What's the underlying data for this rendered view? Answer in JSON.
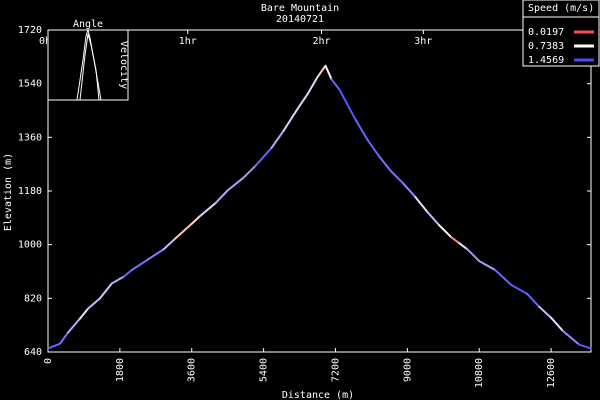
{
  "chart_data": {
    "type": "line",
    "title": "Bare Mountain",
    "subtitle": "20140721",
    "xlabel": "Distance (m)",
    "ylabel": "Elevation (m)",
    "xlim": [
      0,
      13600
    ],
    "ylim": [
      640,
      1720
    ],
    "x_ticks": [
      "0",
      "1800",
      "3600",
      "5400",
      "7200",
      "9000",
      "10800",
      "12600"
    ],
    "x_tick_values": [
      0,
      1800,
      3600,
      5400,
      7200,
      9000,
      10800,
      12600
    ],
    "y_ticks": [
      "640",
      "820",
      "1000",
      "1180",
      "1360",
      "1540",
      "1720"
    ],
    "y_tick_values": [
      640,
      820,
      1000,
      1180,
      1360,
      1540,
      1720
    ],
    "time_ticks": [
      "0hr",
      "1hr",
      "2hr",
      "3hr"
    ],
    "time_tick_distances": [
      0,
      3500,
      6850,
      9400
    ],
    "grid": false,
    "legend": {
      "title": "Speed (m/s)",
      "placement": "top-right",
      "entries": [
        {
          "label": "0.0197",
          "color": "#ff4a4a"
        },
        {
          "label": "0.7383",
          "color": "#ffffff"
        },
        {
          "label": "1.4569",
          "color": "#4a4aff"
        }
      ]
    },
    "inset": {
      "title": "Angle",
      "ylabel": "Velocity"
    },
    "series": [
      {
        "x": [
          0,
          300,
          500,
          800,
          1000,
          1300,
          1600,
          1900,
          2100,
          2500,
          2900,
          3200,
          3600,
          3800,
          4200,
          4500,
          4900,
          5200,
          5600,
          5900,
          6200,
          6500,
          6750,
          6950,
          7100,
          7300,
          7700,
          8000,
          8300,
          8600,
          8900,
          9200,
          9500,
          9800,
          10100,
          10300,
          10500,
          10800,
          11200,
          11600,
          12000,
          12300,
          12600,
          12900,
          13300,
          13600
        ],
        "y": [
          652,
          668,
          705,
          752,
          785,
          820,
          870,
          893,
          915,
          950,
          985,
          1022,
          1070,
          1095,
          1140,
          1182,
          1225,
          1265,
          1325,
          1382,
          1445,
          1505,
          1562,
          1600,
          1555,
          1520,
          1420,
          1352,
          1295,
          1245,
          1205,
          1160,
          1110,
          1065,
          1025,
          1005,
          985,
          945,
          915,
          865,
          835,
          792,
          755,
          710,
          665,
          652
        ],
        "speed": [
          1.3,
          1.4,
          1.2,
          0.9,
          0.8,
          1.2,
          0.7,
          1.4,
          1.3,
          1.3,
          1.2,
          0.8,
          0.2,
          1.0,
          0.8,
          1.3,
          0.9,
          1.4,
          1.3,
          0.8,
          1.0,
          0.8,
          1.0,
          0.1,
          1.3,
          1.4,
          1.4,
          1.3,
          1.4,
          1.2,
          1.4,
          1.0,
          0.7,
          1.3,
          0.2,
          0.3,
          1.4,
          0.9,
          1.3,
          1.4,
          1.4,
          1.3,
          0.7,
          1.0,
          1.4,
          1.4
        ]
      }
    ]
  }
}
